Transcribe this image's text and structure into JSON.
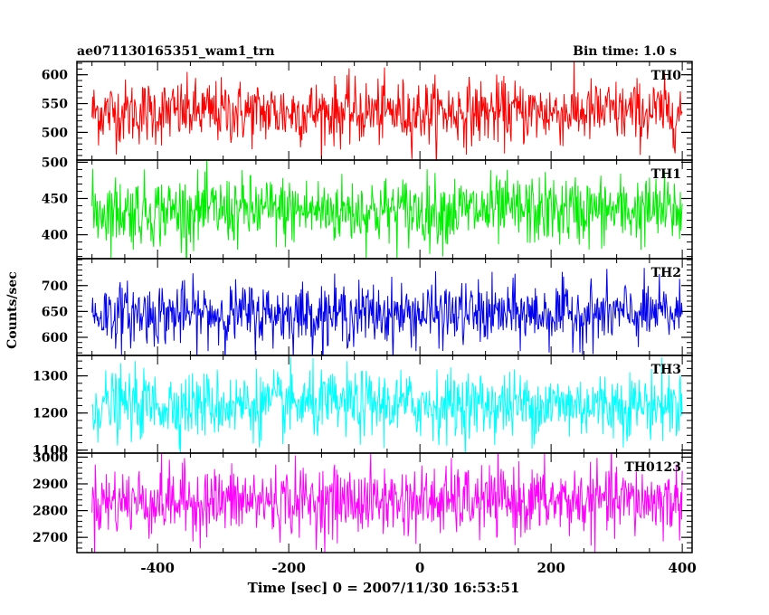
{
  "header": {
    "title": "ae071130165351_wam1_trn",
    "bin_time": "Bin time: 1.0 s"
  },
  "ylabel": "Counts/sec",
  "xlabel": "Time [sec] 0 = 2007/11/30 16:53:51",
  "chart_data": [
    {
      "type": "line",
      "series": [
        {
          "name": "TH0",
          "color": "#ff0000",
          "mean": 535,
          "noise_sd": 28,
          "x_range": [
            -500,
            400
          ]
        }
      ],
      "ylim": [
        452,
        623
      ],
      "yticks": [
        500,
        550,
        600
      ],
      "grid": false
    },
    {
      "type": "line",
      "series": [
        {
          "name": "TH1",
          "color": "#00ee00",
          "mean": 433,
          "noise_sd": 24,
          "x_range": [
            -500,
            400
          ]
        }
      ],
      "ylim": [
        367,
        503
      ],
      "yticks": [
        400,
        450,
        500
      ],
      "grid": false
    },
    {
      "type": "line",
      "series": [
        {
          "name": "TH2",
          "color": "#0000ee",
          "mean": 645,
          "noise_sd": 30,
          "x_range": [
            -500,
            400
          ]
        }
      ],
      "ylim": [
        565,
        752
      ],
      "yticks": [
        600,
        650,
        700
      ],
      "grid": false
    },
    {
      "type": "line",
      "series": [
        {
          "name": "TH3",
          "color": "#00ffff",
          "mean": 1222,
          "noise_sd": 45,
          "x_range": [
            -500,
            400
          ]
        }
      ],
      "ylim": [
        1092,
        1355
      ],
      "yticks": [
        1100,
        1200,
        1300
      ],
      "grid": false
    },
    {
      "type": "line",
      "series": [
        {
          "name": "TH0123",
          "color": "#ff00ff",
          "mean": 2835,
          "noise_sd": 65,
          "x_range": [
            -500,
            400
          ]
        }
      ],
      "ylim": [
        2643,
        3015
      ],
      "yticks": [
        2700,
        2800,
        2900,
        3000
      ],
      "grid": false
    }
  ],
  "x_axis": {
    "xlim": [
      -523,
      415
    ],
    "major_ticks": [
      -400,
      -200,
      0,
      200,
      400
    ],
    "minor_step": 50
  }
}
